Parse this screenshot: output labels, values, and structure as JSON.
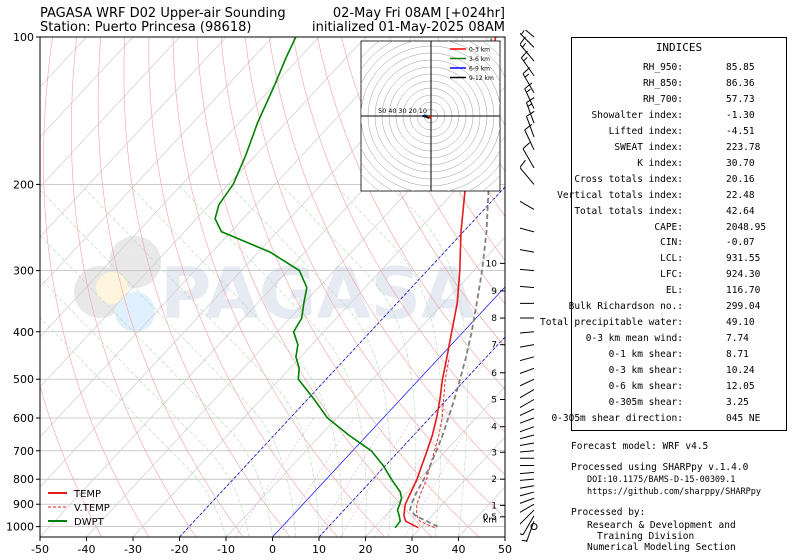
{
  "header": {
    "title_line1": "PAGASA WRF D02 Upper-air Sounding",
    "title_line2": "Station: Puerto Princesa (98618)",
    "valid_line": "02-May Fri 08AM [+024hr]",
    "init_line": "initialized 01-May-2025 08AM"
  },
  "chart_data": {
    "type": "line",
    "subtype": "skew-t log-p",
    "xlim": [
      -50,
      50
    ],
    "ylim": [
      1050,
      100
    ],
    "y_scale": "log",
    "x_ticks": [
      -50,
      -40,
      -30,
      -20,
      -10,
      0,
      10,
      20,
      30,
      40,
      50
    ],
    "y_ticks": [
      100,
      200,
      300,
      400,
      500,
      600,
      700,
      800,
      900,
      1000
    ],
    "height_ticks": [
      {
        "label": "0.5",
        "p": 955
      },
      {
        "label": "1",
        "p": 905
      },
      {
        "label": "2",
        "p": 800
      },
      {
        "label": "3",
        "p": 705
      },
      {
        "label": "4",
        "p": 625
      },
      {
        "label": "5",
        "p": 550
      },
      {
        "label": "6",
        "p": 485
      },
      {
        "label": "7",
        "p": 425
      },
      {
        "label": "8",
        "p": 375
      },
      {
        "label": "9",
        "p": 330
      },
      {
        "label": "10",
        "p": 290
      }
    ],
    "height_unit_label": "km",
    "watermark": "PAGASA",
    "legend_position": "bottom-left",
    "series": [
      {
        "name": "TEMP",
        "color": "#e41a1c",
        "points": [
          [
            1005,
            29.5
          ],
          [
            975,
            25.5
          ],
          [
            950,
            24.0
          ],
          [
            925,
            23.0
          ],
          [
            900,
            22.0
          ],
          [
            850,
            20.8
          ],
          [
            800,
            19.5
          ],
          [
            750,
            17.8
          ],
          [
            700,
            16.0
          ],
          [
            650,
            14.0
          ],
          [
            600,
            11.5
          ],
          [
            550,
            8.5
          ],
          [
            500,
            5.0
          ],
          [
            450,
            1.5
          ],
          [
            400,
            -2.5
          ],
          [
            350,
            -7.0
          ],
          [
            300,
            -13.0
          ],
          [
            250,
            -20.5
          ],
          [
            200,
            -29.0
          ],
          [
            175,
            -34.5
          ],
          [
            150,
            -40.0
          ],
          [
            125,
            -45.5
          ],
          [
            115,
            -48.0
          ],
          [
            108,
            -49.5
          ],
          [
            100,
            -52.0
          ]
        ]
      },
      {
        "name": "V.TEMP",
        "color": "#e41a1c",
        "dashed": true,
        "points": [
          [
            1005,
            33.0
          ],
          [
            975,
            28.5
          ],
          [
            950,
            26.8
          ],
          [
            925,
            25.6
          ],
          [
            900,
            24.5
          ],
          [
            850,
            23.0
          ],
          [
            800,
            21.6
          ],
          [
            750,
            19.6
          ],
          [
            700,
            17.6
          ],
          [
            650,
            15.4
          ],
          [
            600,
            12.7
          ],
          [
            550,
            9.3
          ],
          [
            500,
            5.6
          ],
          [
            450,
            2.0
          ]
        ]
      },
      {
        "name": "DWPT",
        "color": "#008000",
        "points": [
          [
            1005,
            24.5
          ],
          [
            975,
            24.3
          ],
          [
            950,
            23.0
          ],
          [
            925,
            21.5
          ],
          [
            900,
            20.8
          ],
          [
            875,
            20.0
          ],
          [
            850,
            18.5
          ],
          [
            800,
            14.0
          ],
          [
            750,
            9.5
          ],
          [
            700,
            4.0
          ],
          [
            650,
            -4.0
          ],
          [
            600,
            -12.0
          ],
          [
            550,
            -18.5
          ],
          [
            500,
            -26.0
          ],
          [
            475,
            -28.0
          ],
          [
            450,
            -31.0
          ],
          [
            425,
            -33.0
          ],
          [
            400,
            -36.5
          ],
          [
            375,
            -37.5
          ],
          [
            350,
            -40.0
          ],
          [
            325,
            -42.5
          ],
          [
            300,
            -47.5
          ],
          [
            275,
            -57.5
          ],
          [
            250,
            -72.0
          ],
          [
            235,
            -76.0
          ],
          [
            220,
            -78.0
          ],
          [
            200,
            -79.0
          ],
          [
            175,
            -82.0
          ],
          [
            150,
            -86.0
          ],
          [
            125,
            -90.0
          ],
          [
            110,
            -93.0
          ],
          [
            100,
            -95.0
          ]
        ]
      },
      {
        "name": "parcel",
        "color": "#808080",
        "dashed": true,
        "points": [
          [
            1000,
            33.5
          ],
          [
            950,
            26.5
          ],
          [
            925,
            24.2
          ],
          [
            900,
            23.3
          ],
          [
            850,
            22.0
          ],
          [
            800,
            21.0
          ],
          [
            750,
            19.6
          ],
          [
            700,
            18.0
          ],
          [
            650,
            16.2
          ],
          [
            600,
            14.0
          ],
          [
            550,
            11.6
          ],
          [
            500,
            8.8
          ],
          [
            450,
            5.6
          ],
          [
            400,
            1.8
          ],
          [
            350,
            -2.8
          ],
          [
            300,
            -8.2
          ],
          [
            250,
            -15.0
          ],
          [
            200,
            -24.0
          ],
          [
            175,
            -29.5
          ],
          [
            150,
            -35.8
          ],
          [
            125,
            -43.2
          ],
          [
            116.7,
            -46.0
          ],
          [
            108,
            -49.5
          ],
          [
            100,
            -53.0
          ]
        ]
      }
    ],
    "hodograph": {
      "rings": [
        10,
        20,
        30,
        40,
        50
      ],
      "ring_labels": [
        "50",
        "40",
        "30",
        "20",
        "10"
      ],
      "legend": [
        {
          "name": "0-3 km",
          "color": "#ff0000"
        },
        {
          "name": "3-6 km",
          "color": "#008000"
        },
        {
          "name": "6-9 km",
          "color": "#0000ff"
        },
        {
          "name": "9-12 km",
          "color": "#000000"
        }
      ],
      "segments": [
        {
          "layer": "0-3 km",
          "points": [
            [
              0,
              0
            ],
            [
              -1,
              -2
            ],
            [
              -2,
              -3
            ],
            [
              -3,
              -2
            ],
            [
              -2,
              1
            ],
            [
              -3,
              0
            ]
          ]
        },
        {
          "layer": "3-6 km",
          "points": [
            [
              -3,
              0
            ],
            [
              -5,
              0
            ],
            [
              -8,
              1
            ]
          ]
        },
        {
          "layer": "6-9 km",
          "points": [
            [
              -8,
              1
            ],
            [
              -10,
              1
            ],
            [
              -14,
              0
            ]
          ]
        },
        {
          "layer": "9-12 km",
          "points": [
            [
              -14,
              0
            ],
            [
              -6,
              -2
            ],
            [
              -4,
              -4
            ]
          ]
        }
      ]
    }
  },
  "indices": {
    "title": "INDICES",
    "rows": [
      {
        "label": "RH_950:",
        "value": "85.85"
      },
      {
        "label": "RH_850:",
        "value": "86.36"
      },
      {
        "label": "RH_700:",
        "value": "57.73"
      },
      {
        "label": "Showalter index:",
        "value": "-1.30"
      },
      {
        "label": "Lifted index:",
        "value": "-4.51"
      },
      {
        "label": "SWEAT index:",
        "value": "223.78"
      },
      {
        "label": "K index:",
        "value": "30.70"
      },
      {
        "label": "Cross totals index:",
        "value": "20.16"
      },
      {
        "label": "Vertical totals index:",
        "value": "22.48"
      },
      {
        "label": "Total totals index:",
        "value": "42.64"
      },
      {
        "label": "CAPE:",
        "value": "2048.95"
      },
      {
        "label": "CIN:",
        "value": "-0.07"
      },
      {
        "label": "LCL:",
        "value": "931.55"
      },
      {
        "label": "LFC:",
        "value": "924.30"
      },
      {
        "label": "EL:",
        "value": "116.70"
      },
      {
        "label": "Bulk Richardson no.:",
        "value": "299.04"
      },
      {
        "label": "Total precipitable water:",
        "value": "49.10"
      },
      {
        "label": "0-3 km mean wind:",
        "value": "7.74"
      },
      {
        "label": "0-1 km shear:",
        "value": "8.71"
      },
      {
        "label": "0-3 km shear:",
        "value": "10.24"
      },
      {
        "label": "0-6 km shear:",
        "value": "12.05"
      },
      {
        "label": "0-305m shear:",
        "value": "3.25"
      },
      {
        "label": "0-305m shear direction:",
        "value": "045 NE"
      }
    ]
  },
  "footer": {
    "model": "Forecast model: WRF v4.5",
    "processed": "Processed using SHARPpy v.1.4.0",
    "doi": "DOI:10.1175/BAMS-D-15-00309.1",
    "url": "https://github.com/sharppy/SHARPpy",
    "processed_by": "Processed by:",
    "org1": "Research & Development and",
    "org2": "Training Division",
    "org3": "Numerical Modeling Section"
  },
  "wind_barbs": [
    {
      "p": 1000,
      "dir": 0,
      "spd": 0
    },
    {
      "p": 975,
      "dir": 200,
      "spd": 5
    },
    {
      "p": 950,
      "dir": 210,
      "spd": 10
    },
    {
      "p": 925,
      "dir": 225,
      "spd": 10
    },
    {
      "p": 900,
      "dir": 240,
      "spd": 10
    },
    {
      "p": 875,
      "dir": 250,
      "spd": 15
    },
    {
      "p": 850,
      "dir": 255,
      "spd": 15
    },
    {
      "p": 825,
      "dir": 260,
      "spd": 15
    },
    {
      "p": 800,
      "dir": 265,
      "spd": 15
    },
    {
      "p": 775,
      "dir": 265,
      "spd": 15
    },
    {
      "p": 750,
      "dir": 270,
      "spd": 15
    },
    {
      "p": 725,
      "dir": 270,
      "spd": 10
    },
    {
      "p": 700,
      "dir": 265,
      "spd": 10
    },
    {
      "p": 675,
      "dir": 260,
      "spd": 10
    },
    {
      "p": 650,
      "dir": 255,
      "spd": 10
    },
    {
      "p": 625,
      "dir": 250,
      "spd": 10
    },
    {
      "p": 600,
      "dir": 250,
      "spd": 10
    },
    {
      "p": 575,
      "dir": 245,
      "spd": 10
    },
    {
      "p": 550,
      "dir": 240,
      "spd": 10
    },
    {
      "p": 525,
      "dir": 240,
      "spd": 10
    },
    {
      "p": 500,
      "dir": 245,
      "spd": 10
    },
    {
      "p": 475,
      "dir": 250,
      "spd": 10
    },
    {
      "p": 450,
      "dir": 255,
      "spd": 10
    },
    {
      "p": 425,
      "dir": 260,
      "spd": 10
    },
    {
      "p": 400,
      "dir": 265,
      "spd": 10
    },
    {
      "p": 375,
      "dir": 270,
      "spd": 10
    },
    {
      "p": 350,
      "dir": 270,
      "spd": 10
    },
    {
      "p": 325,
      "dir": 275,
      "spd": 10
    },
    {
      "p": 300,
      "dir": 275,
      "spd": 10
    },
    {
      "p": 275,
      "dir": 280,
      "spd": 10
    },
    {
      "p": 250,
      "dir": 285,
      "spd": 10
    },
    {
      "p": 225,
      "dir": 300,
      "spd": 10
    },
    {
      "p": 200,
      "dir": 320,
      "spd": 10
    },
    {
      "p": 185,
      "dir": 330,
      "spd": 10
    },
    {
      "p": 170,
      "dir": 335,
      "spd": 10
    },
    {
      "p": 160,
      "dir": 340,
      "spd": 10
    },
    {
      "p": 150,
      "dir": 340,
      "spd": 15
    },
    {
      "p": 140,
      "dir": 335,
      "spd": 15
    },
    {
      "p": 130,
      "dir": 330,
      "spd": 15
    },
    {
      "p": 120,
      "dir": 325,
      "spd": 15
    },
    {
      "p": 112,
      "dir": 320,
      "spd": 15
    },
    {
      "p": 105,
      "dir": 315,
      "spd": 15
    },
    {
      "p": 100,
      "dir": 310,
      "spd": 15
    }
  ]
}
